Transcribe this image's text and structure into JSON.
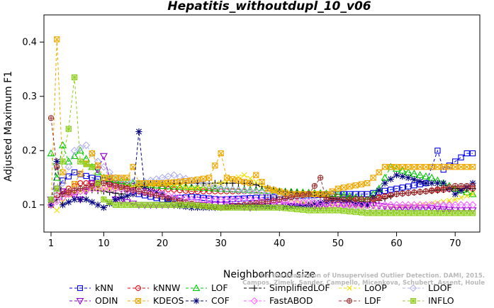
{
  "chart_data": {
    "type": "line",
    "title": "Hepatitis_withoutdupl_10_v06",
    "xlabel": "Neighborhood size",
    "ylabel": "Adjusted Maximum F1",
    "xlim": [
      1,
      73
    ],
    "ylim": [
      0.05,
      0.45
    ],
    "xticks": [
      1,
      10,
      20,
      30,
      40,
      50,
      60,
      70
    ],
    "yticks": [
      0.1,
      0.2,
      0.3,
      0.4
    ],
    "grid": false,
    "legend_placement": "bottom",
    "credit": [
      "Campos, Zimek, Sander, Campello, Micenkova, Schubert, Assent, Houle",
      "On the Evaluation of Unsupervised Outlier Detection. DAMI, 2015."
    ],
    "series": [
      {
        "name": "kNN",
        "color": "#0000ee",
        "marker": "square",
        "knots": [
          [
            1,
            0.11
          ],
          [
            2,
            0.13
          ],
          [
            3,
            0.145
          ],
          [
            5,
            0.16
          ],
          [
            8,
            0.15
          ],
          [
            12,
            0.14
          ],
          [
            16,
            0.12
          ],
          [
            20,
            0.11
          ],
          [
            25,
            0.115
          ],
          [
            30,
            0.11
          ],
          [
            40,
            0.115
          ],
          [
            50,
            0.12
          ],
          [
            55,
            0.12
          ],
          [
            60,
            0.13
          ],
          [
            65,
            0.14
          ],
          [
            67,
            0.2
          ],
          [
            68,
            0.165
          ],
          [
            70,
            0.18
          ],
          [
            72,
            0.195
          ],
          [
            73,
            0.195
          ]
        ]
      },
      {
        "name": "kNNW",
        "color": "#e8000b",
        "marker": "circle",
        "knots": [
          [
            1,
            0.11
          ],
          [
            3,
            0.125
          ],
          [
            6,
            0.14
          ],
          [
            10,
            0.14
          ],
          [
            15,
            0.135
          ],
          [
            20,
            0.13
          ],
          [
            25,
            0.125
          ],
          [
            30,
            0.125
          ],
          [
            35,
            0.125
          ],
          [
            40,
            0.12
          ],
          [
            45,
            0.12
          ],
          [
            50,
            0.115
          ],
          [
            55,
            0.11
          ],
          [
            60,
            0.12
          ],
          [
            65,
            0.125
          ],
          [
            70,
            0.13
          ],
          [
            73,
            0.13
          ]
        ]
      },
      {
        "name": "LOF",
        "color": "#00c800",
        "marker": "triangle-up",
        "knots": [
          [
            1,
            0.195
          ],
          [
            2,
            0.15
          ],
          [
            3,
            0.21
          ],
          [
            4,
            0.18
          ],
          [
            6,
            0.2
          ],
          [
            8,
            0.17
          ],
          [
            10,
            0.15
          ],
          [
            15,
            0.14
          ],
          [
            20,
            0.135
          ],
          [
            30,
            0.13
          ],
          [
            40,
            0.125
          ],
          [
            50,
            0.12
          ],
          [
            55,
            0.11
          ],
          [
            57,
            0.13
          ],
          [
            59,
            0.17
          ],
          [
            62,
            0.16
          ],
          [
            66,
            0.15
          ],
          [
            70,
            0.13
          ],
          [
            73,
            0.12
          ]
        ]
      },
      {
        "name": "SimplifiedLOF",
        "color": "#000000",
        "marker": "plus",
        "knots": [
          [
            1,
            0.1
          ],
          [
            3,
            0.12
          ],
          [
            6,
            0.13
          ],
          [
            10,
            0.125
          ],
          [
            13,
            0.12
          ],
          [
            15,
            0.13
          ],
          [
            18,
            0.14
          ],
          [
            22,
            0.14
          ],
          [
            30,
            0.14
          ],
          [
            35,
            0.14
          ],
          [
            40,
            0.125
          ],
          [
            45,
            0.12
          ],
          [
            50,
            0.11
          ],
          [
            55,
            0.1
          ],
          [
            60,
            0.12
          ],
          [
            65,
            0.125
          ],
          [
            70,
            0.13
          ],
          [
            73,
            0.13
          ]
        ]
      },
      {
        "name": "LoOP",
        "color": "#f0e000",
        "marker": "cross",
        "knots": [
          [
            1,
            0.1
          ],
          [
            2,
            0.09
          ],
          [
            4,
            0.12
          ],
          [
            8,
            0.13
          ],
          [
            12,
            0.13
          ],
          [
            16,
            0.135
          ],
          [
            20,
            0.14
          ],
          [
            25,
            0.13
          ],
          [
            30,
            0.14
          ],
          [
            34,
            0.155
          ],
          [
            38,
            0.13
          ],
          [
            42,
            0.11
          ],
          [
            46,
            0.1
          ],
          [
            50,
            0.1
          ],
          [
            55,
            0.095
          ],
          [
            60,
            0.095
          ],
          [
            65,
            0.1
          ],
          [
            70,
            0.11
          ],
          [
            73,
            0.12
          ]
        ]
      },
      {
        "name": "LDOF",
        "color": "#b0b0ee",
        "marker": "diamond",
        "knots": [
          [
            1,
            0.11
          ],
          [
            3,
            0.14
          ],
          [
            5,
            0.2
          ],
          [
            7,
            0.21
          ],
          [
            9,
            0.18
          ],
          [
            12,
            0.15
          ],
          [
            16,
            0.14
          ],
          [
            20,
            0.15
          ],
          [
            22,
            0.155
          ],
          [
            25,
            0.145
          ],
          [
            30,
            0.13
          ],
          [
            40,
            0.12
          ],
          [
            50,
            0.1
          ],
          [
            55,
            0.09
          ],
          [
            60,
            0.09
          ],
          [
            65,
            0.095
          ],
          [
            70,
            0.1
          ],
          [
            73,
            0.1
          ]
        ]
      },
      {
        "name": "ODIN",
        "color": "#9000d0",
        "marker": "triangle-down",
        "knots": [
          [
            1,
            0.11
          ],
          [
            2,
            0.13
          ],
          [
            4,
            0.12
          ],
          [
            6,
            0.11
          ],
          [
            8,
            0.14
          ],
          [
            10,
            0.19
          ],
          [
            12,
            0.11
          ],
          [
            16,
            0.1
          ],
          [
            20,
            0.1
          ],
          [
            25,
            0.1
          ],
          [
            30,
            0.1
          ],
          [
            35,
            0.095
          ],
          [
            40,
            0.1
          ],
          [
            45,
            0.095
          ],
          [
            50,
            0.1
          ],
          [
            55,
            0.1
          ],
          [
            60,
            0.095
          ],
          [
            65,
            0.095
          ],
          [
            70,
            0.09
          ],
          [
            73,
            0.09
          ]
        ]
      },
      {
        "name": "KDEOS",
        "color": "#f0a800",
        "marker": "square-x",
        "knots": [
          [
            1,
            0.1
          ],
          [
            2,
            0.405
          ],
          [
            3,
            0.16
          ],
          [
            4,
            0.12
          ],
          [
            8,
            0.195
          ],
          [
            10,
            0.15
          ],
          [
            14,
            0.15
          ],
          [
            15,
            0.17
          ],
          [
            16,
            0.14
          ],
          [
            20,
            0.14
          ],
          [
            25,
            0.145
          ],
          [
            28,
            0.15
          ],
          [
            30,
            0.195
          ],
          [
            31,
            0.15
          ],
          [
            35,
            0.14
          ],
          [
            36,
            0.155
          ],
          [
            38,
            0.13
          ],
          [
            42,
            0.12
          ],
          [
            48,
            0.12
          ],
          [
            50,
            0.13
          ],
          [
            55,
            0.14
          ],
          [
            58,
            0.17
          ],
          [
            62,
            0.17
          ],
          [
            66,
            0.17
          ],
          [
            70,
            0.17
          ],
          [
            73,
            0.17
          ]
        ]
      },
      {
        "name": "COF",
        "color": "#000080",
        "marker": "star",
        "knots": [
          [
            1,
            0.1
          ],
          [
            2,
            0.18
          ],
          [
            3,
            0.1
          ],
          [
            5,
            0.11
          ],
          [
            7,
            0.11
          ],
          [
            10,
            0.095
          ],
          [
            12,
            0.11
          ],
          [
            15,
            0.12
          ],
          [
            16,
            0.235
          ],
          [
            17,
            0.13
          ],
          [
            20,
            0.12
          ],
          [
            22,
            0.1
          ],
          [
            25,
            0.095
          ],
          [
            30,
            0.095
          ],
          [
            35,
            0.1
          ],
          [
            40,
            0.095
          ],
          [
            45,
            0.1
          ],
          [
            50,
            0.11
          ],
          [
            55,
            0.1
          ],
          [
            58,
            0.14
          ],
          [
            60,
            0.155
          ],
          [
            62,
            0.15
          ],
          [
            65,
            0.14
          ],
          [
            68,
            0.14
          ],
          [
            70,
            0.12
          ],
          [
            73,
            0.14
          ]
        ]
      },
      {
        "name": "FastABOD",
        "color": "#ff60ff",
        "marker": "diamond",
        "knots": [
          [
            1,
            0.1
          ],
          [
            4,
            0.12
          ],
          [
            8,
            0.13
          ],
          [
            12,
            0.13
          ],
          [
            16,
            0.125
          ],
          [
            20,
            0.12
          ],
          [
            25,
            0.11
          ],
          [
            30,
            0.11
          ],
          [
            35,
            0.11
          ],
          [
            40,
            0.105
          ],
          [
            45,
            0.105
          ],
          [
            50,
            0.1
          ],
          [
            55,
            0.1
          ],
          [
            60,
            0.1
          ],
          [
            65,
            0.1
          ],
          [
            70,
            0.1
          ],
          [
            73,
            0.1
          ]
        ]
      },
      {
        "name": "LDF",
        "color": "#a03030",
        "marker": "circle-plus",
        "knots": [
          [
            1,
            0.26
          ],
          [
            2,
            0.17
          ],
          [
            3,
            0.12
          ],
          [
            6,
            0.13
          ],
          [
            10,
            0.14
          ],
          [
            14,
            0.13
          ],
          [
            18,
            0.12
          ],
          [
            22,
            0.11
          ],
          [
            26,
            0.1
          ],
          [
            30,
            0.095
          ],
          [
            34,
            0.1
          ],
          [
            40,
            0.11
          ],
          [
            45,
            0.12
          ],
          [
            47,
            0.15
          ],
          [
            48,
            0.11
          ],
          [
            52,
            0.11
          ],
          [
            56,
            0.11
          ],
          [
            60,
            0.12
          ],
          [
            65,
            0.125
          ],
          [
            70,
            0.135
          ],
          [
            73,
            0.135
          ]
        ]
      },
      {
        "name": "INFLO",
        "color": "#90d020",
        "marker": "star-box",
        "knots": [
          [
            1,
            0.11
          ],
          [
            2,
            0.13
          ],
          [
            3,
            0.18
          ],
          [
            4,
            0.24
          ],
          [
            5,
            0.335
          ],
          [
            6,
            0.18
          ],
          [
            8,
            0.17
          ],
          [
            10,
            0.11
          ],
          [
            12,
            0.1
          ],
          [
            16,
            0.1
          ],
          [
            20,
            0.1
          ],
          [
            25,
            0.1
          ],
          [
            30,
            0.095
          ],
          [
            35,
            0.095
          ],
          [
            40,
            0.095
          ],
          [
            45,
            0.09
          ],
          [
            50,
            0.09
          ],
          [
            55,
            0.085
          ],
          [
            60,
            0.085
          ],
          [
            65,
            0.085
          ],
          [
            70,
            0.085
          ],
          [
            73,
            0.085
          ]
        ]
      }
    ]
  }
}
